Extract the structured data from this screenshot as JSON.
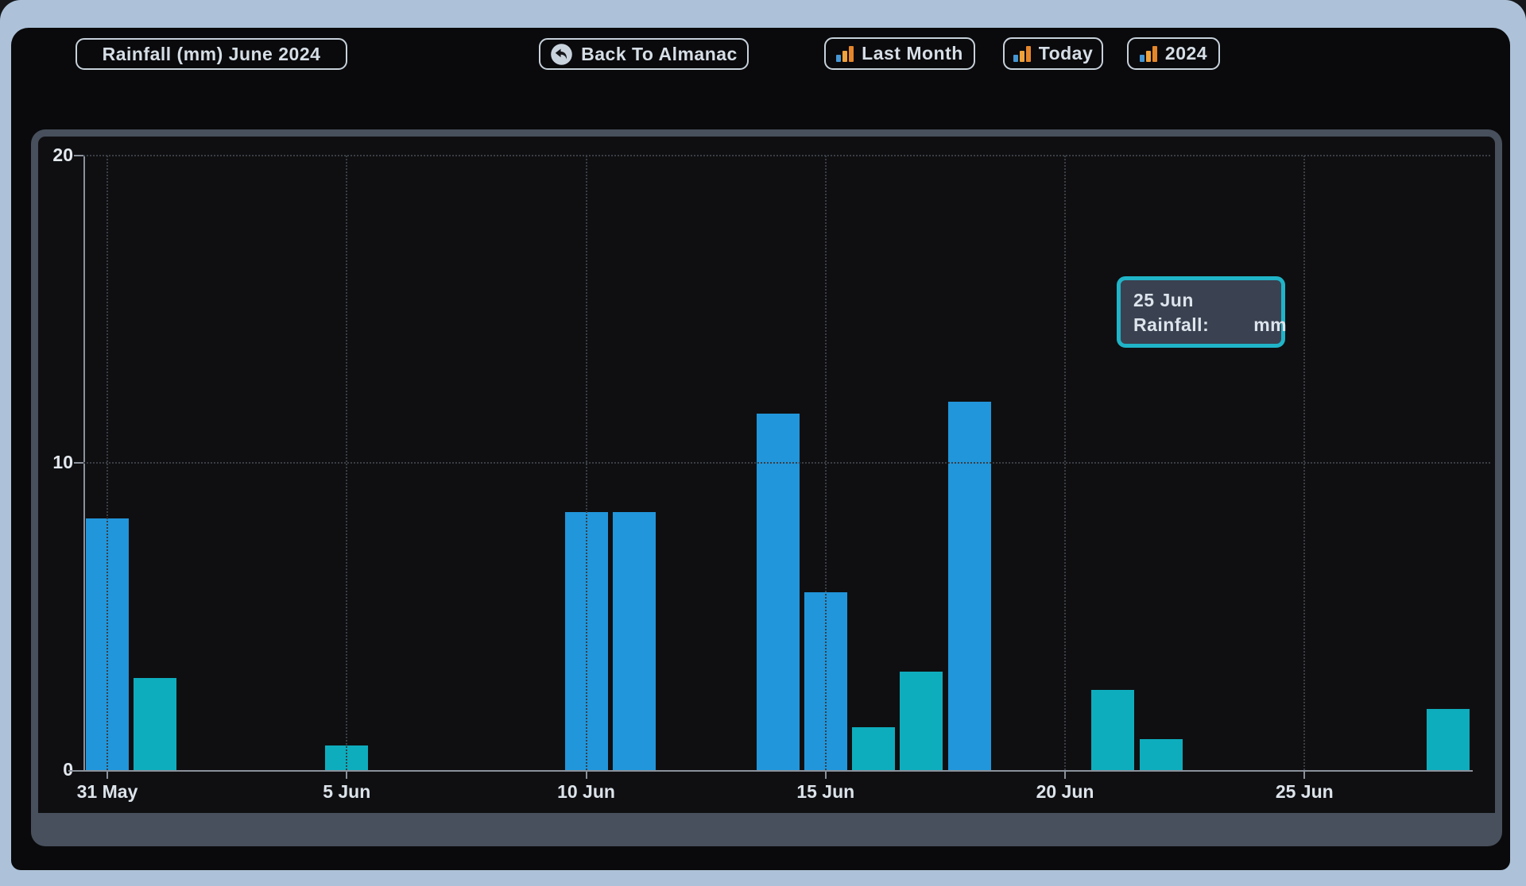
{
  "header": {
    "title": "Rainfall (mm) June 2024",
    "back_button": {
      "label": "Back To Almanac",
      "icon": "back-arrow-icon"
    },
    "nav_buttons": [
      {
        "id": "last-month",
        "label": "Last Month",
        "icon": "bar-chart-icon"
      },
      {
        "id": "today",
        "label": "Today",
        "icon": "bar-chart-icon"
      },
      {
        "id": "2024",
        "label": "2024",
        "icon": "bar-chart-icon"
      }
    ]
  },
  "tooltip": {
    "date": "25 Jun",
    "label": "Rainfall:",
    "value": "",
    "unit": "mm"
  },
  "chart_data": {
    "type": "bar",
    "title": "Rainfall (mm) June 2024",
    "xlabel": "",
    "ylabel": "Rainfall (mm)",
    "ylim": [
      0,
      20
    ],
    "y_ticks": [
      20,
      10,
      0
    ],
    "x_ticks": [
      "31 May",
      "5 Jun",
      "10 Jun",
      "15 Jun",
      "20 Jun",
      "25 Jun"
    ],
    "x_tick_days": [
      0,
      5,
      10,
      15,
      20,
      25
    ],
    "grid": "dotted",
    "legend": "none",
    "series": [
      {
        "name": "rainfall-blue",
        "color": "#2196db",
        "points": [
          {
            "date": "31 May",
            "day": 0,
            "value": 8.2
          },
          {
            "date": "10 Jun",
            "day": 10,
            "value": 8.4
          },
          {
            "date": "11 Jun",
            "day": 11,
            "value": 8.4
          },
          {
            "date": "14 Jun",
            "day": 14,
            "value": 11.6
          },
          {
            "date": "15 Jun",
            "day": 15,
            "value": 5.8
          },
          {
            "date": "18 Jun",
            "day": 18,
            "value": 12.0
          }
        ]
      },
      {
        "name": "rainfall-teal",
        "color": "#0eadbd",
        "points": [
          {
            "date": "1 Jun",
            "day": 1,
            "value": 3.0
          },
          {
            "date": "5 Jun",
            "day": 5,
            "value": 0.8
          },
          {
            "date": "16 Jun",
            "day": 16,
            "value": 1.4
          },
          {
            "date": "17 Jun",
            "day": 17,
            "value": 3.2
          },
          {
            "date": "21 Jun",
            "day": 21,
            "value": 2.6
          },
          {
            "date": "22 Jun",
            "day": 22,
            "value": 1.0
          },
          {
            "date": "28 Jun",
            "day": 28,
            "value": 2.0
          }
        ]
      }
    ]
  },
  "colors": {
    "page_frame": "#adc2d9",
    "app_background": "#0a0a0c",
    "panel_border": "#47505c",
    "plot_background": "#0f0f11",
    "axis": "#8a919b",
    "grid": "#3a3e45",
    "bar_blue": "#2196db",
    "bar_teal": "#0eadbd",
    "text_light": "#dfe6ed",
    "tooltip_border": "#20b4c8",
    "tooltip_background": "#3a4150",
    "icon_bar_blue": "#4596d3",
    "icon_bar_orange": "#f0a23b",
    "icon_bar_dark_orange": "#e5862b"
  }
}
